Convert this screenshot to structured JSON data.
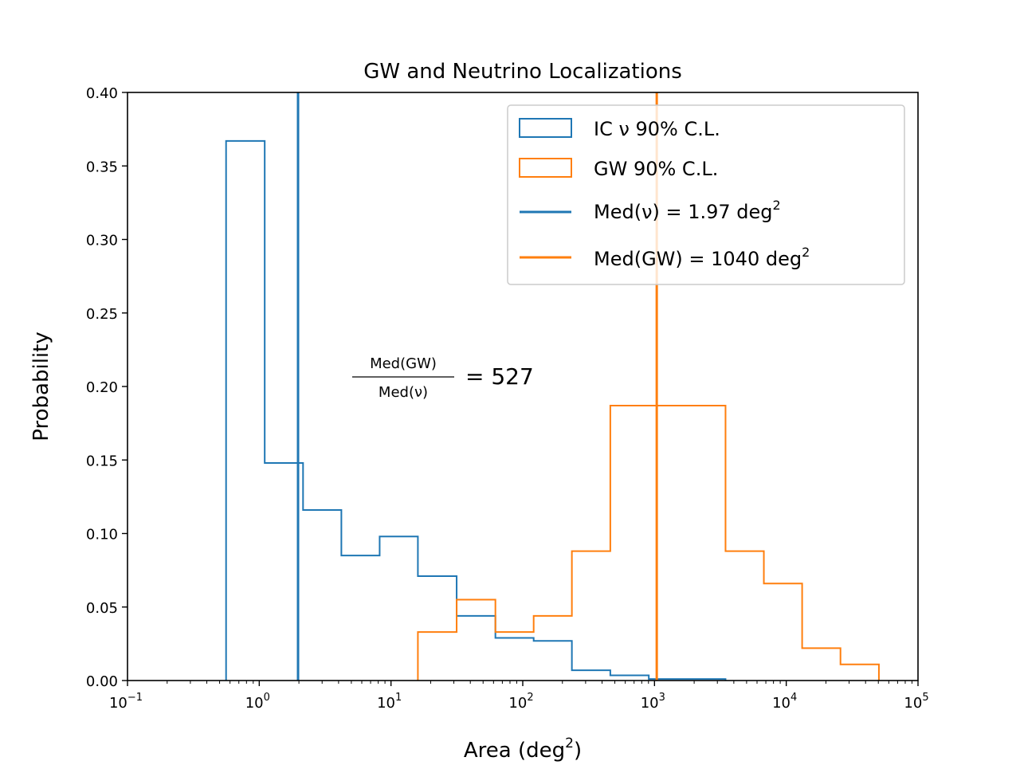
{
  "chart_data": {
    "type": "histogram",
    "title": "GW and Neutrino Localizations",
    "xlabel": "Area (deg",
    "xlabel_sup": "2",
    "xlabel_end": ")",
    "ylabel": "Probability",
    "xscale": "log",
    "xlim": [
      0.1,
      100000
    ],
    "ylim": [
      0.0,
      0.4
    ],
    "yticks": [
      "0.00",
      "0.05",
      "0.10",
      "0.15",
      "0.20",
      "0.25",
      "0.30",
      "0.35",
      "0.40"
    ],
    "xticks": [
      {
        "base": "10",
        "exp": "−1",
        "value": 0.1
      },
      {
        "base": "10",
        "exp": "0",
        "value": 1
      },
      {
        "base": "10",
        "exp": "1",
        "value": 10
      },
      {
        "base": "10",
        "exp": "2",
        "value": 100
      },
      {
        "base": "10",
        "exp": "3",
        "value": 1000
      },
      {
        "base": "10",
        "exp": "4",
        "value": 10000
      },
      {
        "base": "10",
        "exp": "5",
        "value": 100000
      }
    ],
    "series": [
      {
        "name": "IC ν 90% C.L.",
        "color": "#1f77b4",
        "bin_edges": [
          0.56,
          1.1,
          2.15,
          4.2,
          8.2,
          16,
          31.5,
          62,
          121,
          236,
          462,
          905,
          1770,
          3460
        ],
        "values": [
          0.367,
          0.148,
          0.116,
          0.085,
          0.098,
          0.071,
          0.044,
          0.029,
          0.027,
          0.007,
          0.0035,
          0.001,
          0.001
        ]
      },
      {
        "name": "GW 90% C.L.",
        "color": "#ff7f0e",
        "bin_edges": [
          16,
          31.5,
          62,
          121,
          236,
          462,
          905,
          1770,
          3460,
          6760,
          13200,
          25800,
          50500
        ],
        "values": [
          0.033,
          0.055,
          0.033,
          0.044,
          0.088,
          0.187,
          0.187,
          0.187,
          0.088,
          0.066,
          0.022,
          0.011
        ]
      }
    ],
    "vlines": [
      {
        "name": "Med(ν) = 1.97 deg",
        "sup": "2",
        "x": 1.97,
        "color": "#1f77b4"
      },
      {
        "name": "Med(GW) = 1040 deg",
        "sup": "2",
        "x": 1040,
        "color": "#ff7f0e"
      }
    ],
    "legend_position": "top-right",
    "annotation": {
      "numerator": "Med(GW)",
      "denominator": "Med(ν)",
      "equals": "= 527",
      "x": 5.5,
      "y": 0.2
    }
  }
}
